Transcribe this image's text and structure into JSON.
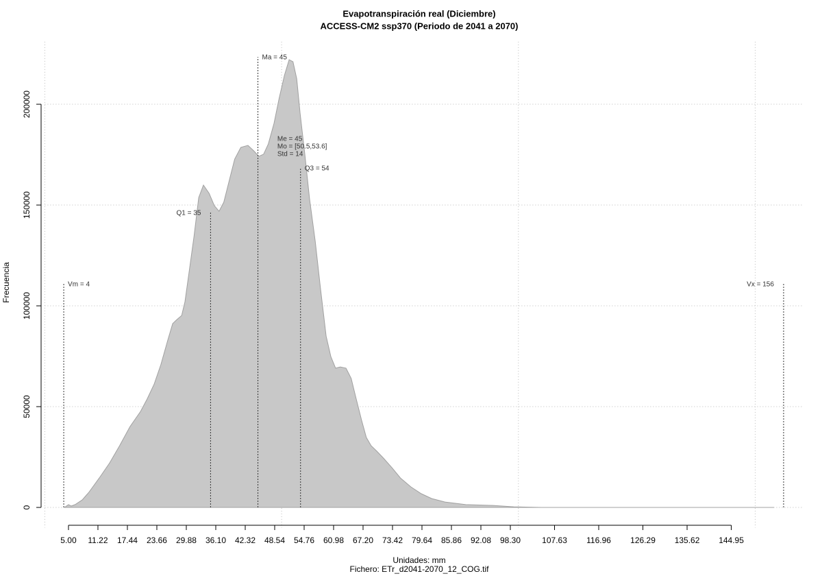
{
  "chart_data": {
    "type": "area",
    "title": "Evapotranspiración real (Diciembre)",
    "subtitle": "ACCESS-CM2 ssp370 (Periodo de 2041 a 2070)",
    "xlabel": "Unidades: mm",
    "ylabel": "Frecuencia",
    "caption": "Fichero: ETr_d2041-2070_12_COG.tif",
    "color": "#c8c8c8",
    "x": [
      4.13,
      5.0,
      5.6,
      6.4,
      7.9,
      9.3,
      11.5,
      13.7,
      15.8,
      18.0,
      20.2,
      21.6,
      23.1,
      24.5,
      26.0,
      27.0,
      27.9,
      28.9,
      29.6,
      30.5,
      31.5,
      32.5,
      33.5,
      34.7,
      35.8,
      36.8,
      37.8,
      39.0,
      40.1,
      41.4,
      42.9,
      44.1,
      45.2,
      46.2,
      47.2,
      48.4,
      49.5,
      50.6,
      51.6,
      52.4,
      53.2,
      53.9,
      54.9,
      55.9,
      57.1,
      58.2,
      59.4,
      60.4,
      61.4,
      62.4,
      63.6,
      64.7,
      65.7,
      66.9,
      67.9,
      68.9,
      70.1,
      71.5,
      73.3,
      75.1,
      77.3,
      79.5,
      81.7,
      84.5,
      88.9,
      94.7,
      99.0,
      104.8,
      154.0
    ],
    "values": [
      0,
      1400,
      700,
      1400,
      3700,
      7500,
      14600,
      22100,
      30600,
      40100,
      47600,
      53700,
      61200,
      70800,
      83300,
      91200,
      93200,
      95200,
      102000,
      117400,
      134400,
      153700,
      159900,
      155800,
      149700,
      146900,
      151400,
      162600,
      172800,
      178600,
      179600,
      176900,
      174200,
      175200,
      180300,
      190500,
      203100,
      214300,
      222100,
      221100,
      212600,
      195600,
      175200,
      153100,
      132000,
      108800,
      85000,
      74800,
      69100,
      69700,
      69100,
      64000,
      54400,
      43200,
      34700,
      30600,
      27900,
      24500,
      19700,
      14600,
      10200,
      6800,
      4400,
      2700,
      1400,
      1000,
      300,
      0,
      0
    ],
    "xlim": [
      0,
      160
    ],
    "ylim": [
      -10000,
      231000
    ],
    "xticks": [
      {
        "value": 5,
        "label": "5.00"
      },
      11.22,
      17.44,
      23.66,
      29.88,
      {
        "value": 36.1,
        "label": "36.10"
      },
      42.32,
      48.54,
      54.76,
      60.98,
      {
        "value": 67.2,
        "label": "67.20"
      },
      73.42,
      79.64,
      85.86,
      92.08,
      {
        "value": 98.3,
        "label": "98.30"
      },
      107.63,
      116.96,
      126.29,
      135.62,
      144.95
    ],
    "yticks": [
      0,
      50000,
      100000,
      150000,
      200000
    ],
    "xgrid": [
      0,
      50,
      100,
      150
    ],
    "grid": true,
    "markers": [
      {
        "label": "Vm = 4",
        "x": 4,
        "top": 111000,
        "side": "right"
      },
      {
        "label": "Q1 = 35",
        "x": 35,
        "top": 146300,
        "side": "left"
      },
      {
        "label": "Ma = 45",
        "x": 45,
        "top": 223500,
        "side": "right"
      },
      {
        "label": "Q3 = 54",
        "x": 54,
        "top": 168400,
        "side": "right"
      },
      {
        "label": "Vx = 156",
        "x": 156,
        "top": 111000,
        "side": "left"
      }
    ],
    "notes": [
      {
        "label": "Me = 45",
        "x": 49.1,
        "y": 182700
      },
      {
        "label": "Mo = [50.5,53.6]",
        "x": 49.1,
        "y": 178900
      },
      {
        "label": "Std = 14",
        "x": 49.1,
        "y": 175200
      }
    ]
  }
}
